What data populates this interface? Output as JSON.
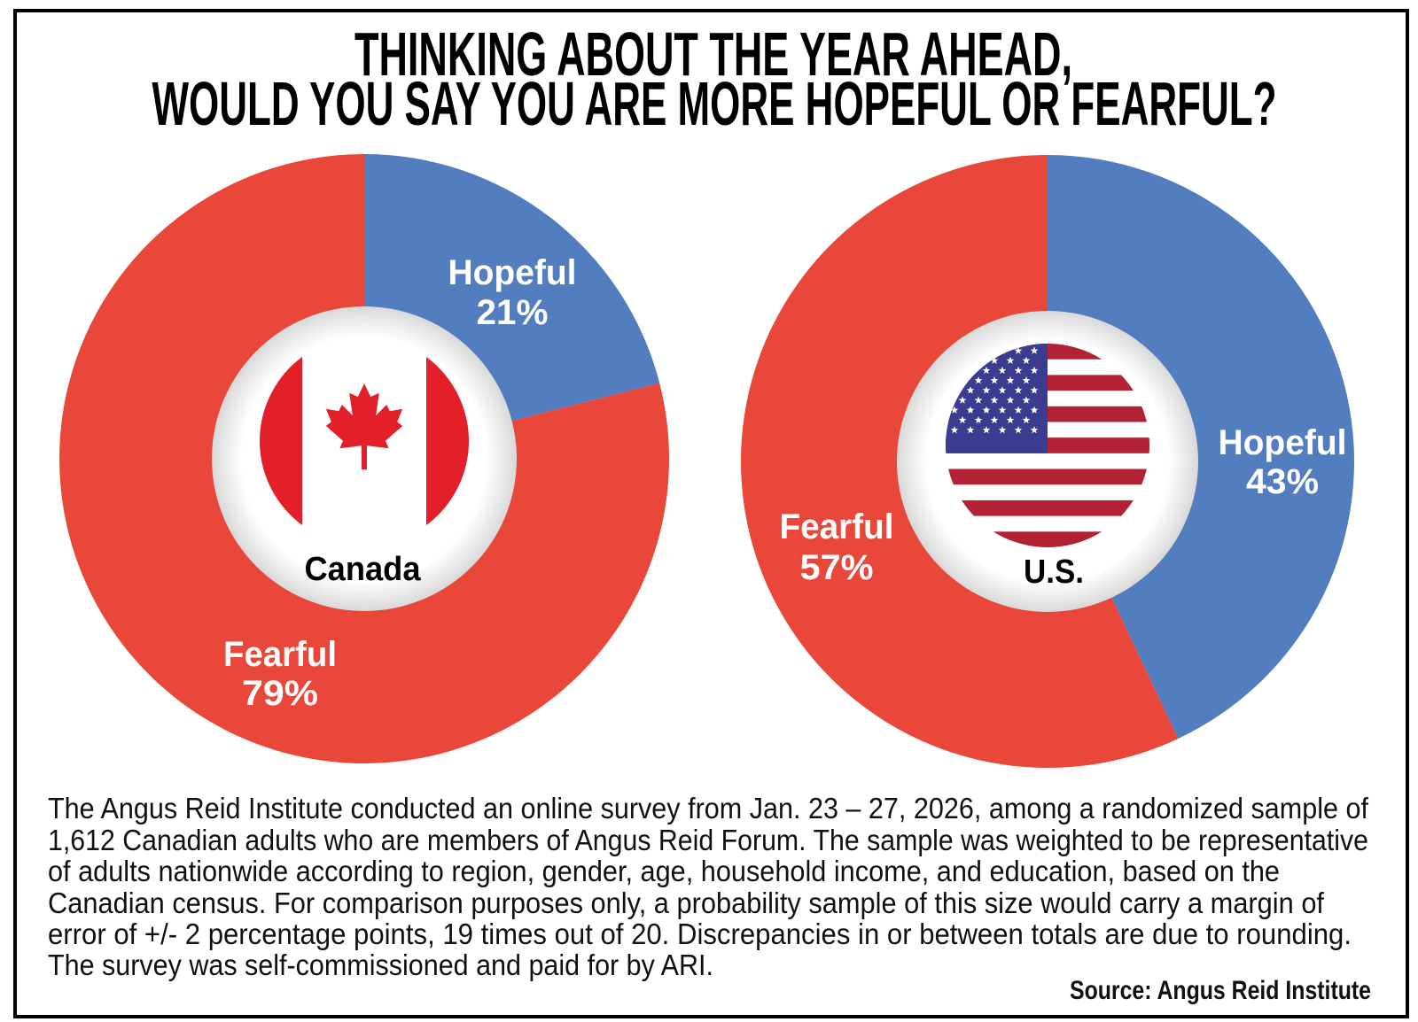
{
  "title": [
    "THINKING ABOUT THE YEAR AHEAD,",
    "WOULD YOU SAY YOU ARE MORE HOPEFUL OR FEARFUL?"
  ],
  "colors": {
    "hopeful": "#527dbf",
    "fearful": "#e8473a",
    "flag_red": "#e3202a",
    "us_blue": "#3b3b8f",
    "us_red": "#b22234"
  },
  "chart_data": [
    {
      "type": "pie",
      "donut": true,
      "country": "Canada",
      "flag": "canada-flag",
      "slices": [
        {
          "label": "Hopeful",
          "value": 21,
          "display": "21%"
        },
        {
          "label": "Fearful",
          "value": 79,
          "display": "79%"
        }
      ]
    },
    {
      "type": "pie",
      "donut": true,
      "country": "U.S.",
      "flag": "us-flag",
      "slices": [
        {
          "label": "Hopeful",
          "value": 43,
          "display": "43%"
        },
        {
          "label": "Fearful",
          "value": 57,
          "display": "57%"
        }
      ]
    }
  ],
  "footnote": [
    "The Angus Reid Institute conducted an online survey from Jan. 23 – 27, 2026, among a randomized sample of",
    "1,612 Canadian adults who are members of Angus Reid Forum. The sample was weighted to be representative",
    "of adults nationwide according to region, gender, age, household income, and education, based on the",
    "Canadian census. For comparison purposes only, a probability sample of this size would carry a margin of",
    "error of +/- 2 percentage points, 19 times out of 20. Discrepancies in or between totals are due to rounding.",
    "The survey was self-commissioned and paid for by ARI."
  ],
  "source": "Source: Angus Reid Institute"
}
